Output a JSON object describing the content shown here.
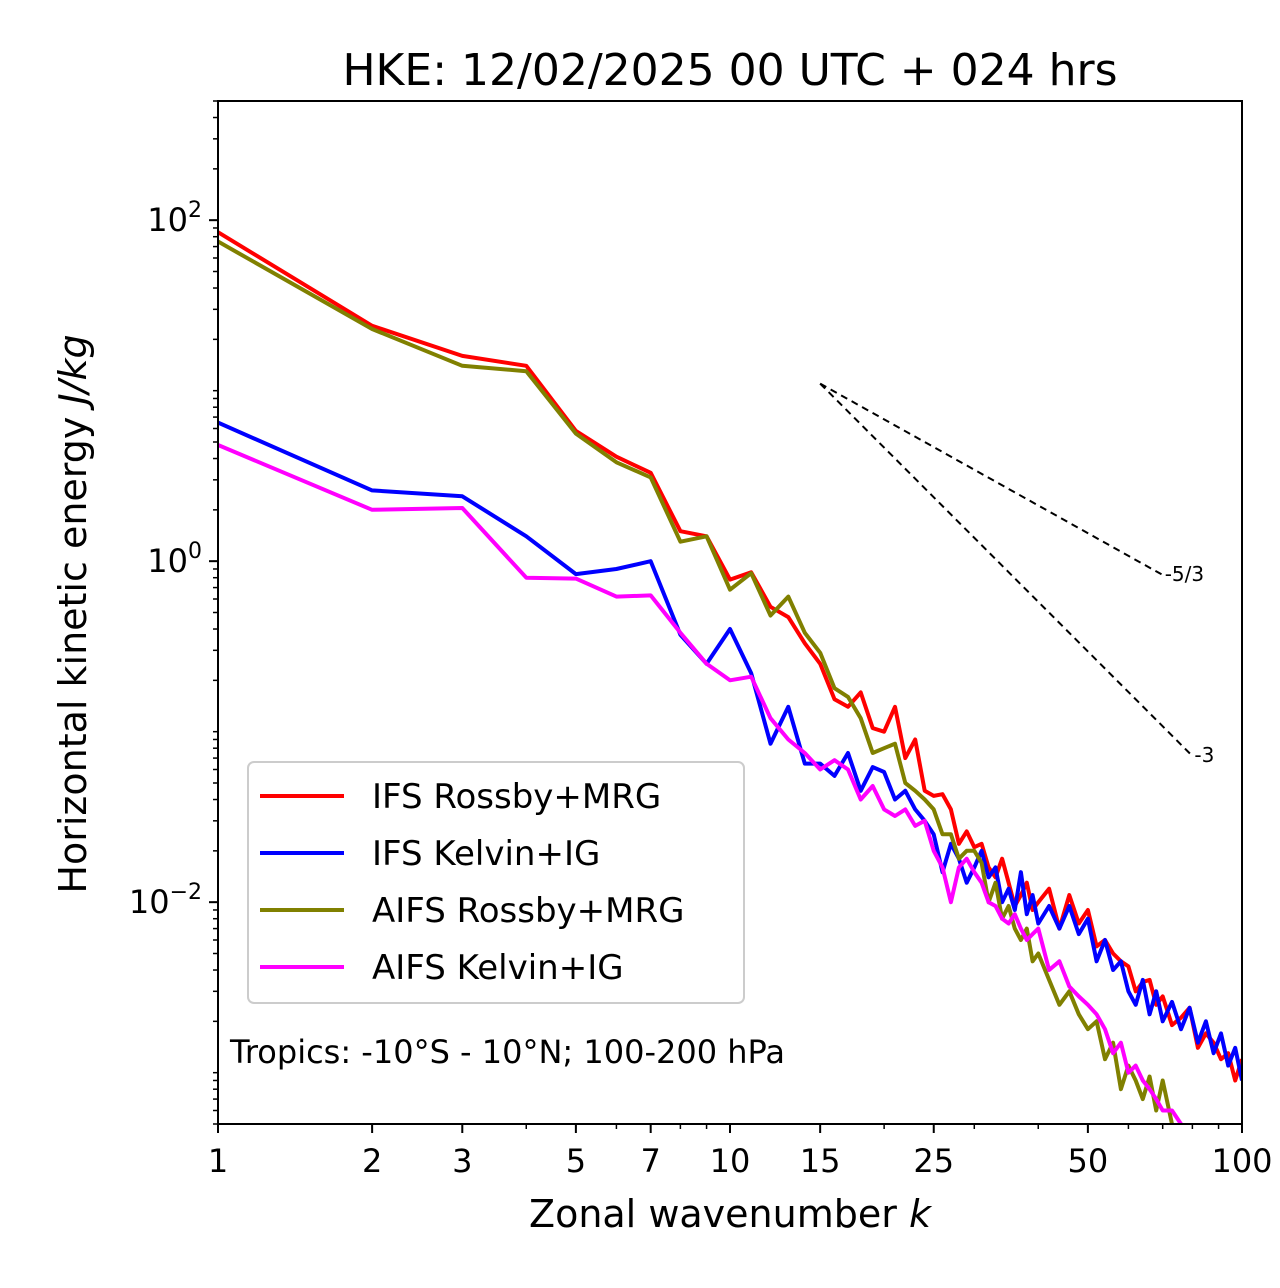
{
  "chart_data": {
    "type": "line",
    "title": "HKE: 12/02/2025 00 UTC + 024 hrs",
    "xlabel": "Zonal wavenumber",
    "xlabel_var": "k",
    "ylabel": "Horizontal kinetic energy",
    "ylabel_unit": "J/kg",
    "x_scale": "log",
    "y_scale": "log",
    "xlim": [
      1,
      100
    ],
    "ylim": [
      0.0005,
      500
    ],
    "x_ticks": [
      1,
      2,
      3,
      5,
      7,
      10,
      15,
      25,
      50,
      100
    ],
    "x_tick_labels": [
      "1",
      "2",
      "3",
      "5",
      "7",
      "10",
      "15",
      "25",
      "50",
      "100"
    ],
    "y_ticks": [
      0.01,
      1,
      100
    ],
    "y_tick_labels": [
      {
        "base": "10",
        "exp": "−2"
      },
      {
        "base": "10",
        "exp": "0"
      },
      {
        "base": "10",
        "exp": "2"
      }
    ],
    "grid": false,
    "legend_position": "lower-left",
    "annotation": "Tropics: -10°S - 10°N; 100-200 hPa",
    "reference_lines": [
      {
        "label": "-5/3",
        "slope": -1.6667,
        "x": [
          15,
          70
        ],
        "y": [
          11,
          0.83
        ]
      },
      {
        "label": "-3",
        "slope": -3,
        "x": [
          15,
          80
        ],
        "y": [
          11,
          0.072
        ]
      }
    ],
    "series": [
      {
        "name": "IFS Rossby+MRG",
        "color": "#ff0000",
        "x": [
          1,
          2,
          3,
          4,
          5,
          6,
          7,
          8,
          9,
          10,
          11,
          12,
          13,
          14,
          15,
          16,
          17,
          18,
          19,
          20,
          21,
          22,
          23,
          24,
          25,
          26,
          27,
          28,
          29,
          30,
          31,
          32,
          33,
          34,
          35,
          36,
          37,
          38,
          39,
          40,
          42,
          44,
          46,
          48,
          50,
          52,
          54,
          56,
          58,
          60,
          62,
          64,
          66,
          68,
          70,
          73,
          76,
          79,
          82,
          85,
          88,
          91,
          94,
          97,
          100
        ],
        "y": [
          85,
          24,
          16,
          14,
          5.8,
          4.1,
          3.3,
          1.5,
          1.4,
          0.78,
          0.86,
          0.54,
          0.47,
          0.33,
          0.25,
          0.155,
          0.14,
          0.17,
          0.105,
          0.1,
          0.14,
          0.07,
          0.09,
          0.045,
          0.042,
          0.043,
          0.035,
          0.022,
          0.026,
          0.021,
          0.022,
          0.016,
          0.014,
          0.018,
          0.013,
          0.0095,
          0.011,
          0.013,
          0.009,
          0.01,
          0.012,
          0.007,
          0.011,
          0.0075,
          0.009,
          0.0055,
          0.006,
          0.005,
          0.0045,
          0.0042,
          0.003,
          0.0034,
          0.0035,
          0.0025,
          0.0028,
          0.0019,
          0.0021,
          0.0024,
          0.0014,
          0.0017,
          0.0015,
          0.0012,
          0.0013,
          0.0009,
          0.0012
        ]
      },
      {
        "name": "IFS Kelvin+IG",
        "color": "#0000ff",
        "x": [
          1,
          2,
          3,
          4,
          5,
          6,
          7,
          8,
          9,
          10,
          11,
          12,
          13,
          14,
          15,
          16,
          17,
          18,
          19,
          20,
          21,
          22,
          23,
          24,
          25,
          26,
          27,
          28,
          29,
          30,
          31,
          32,
          33,
          34,
          35,
          36,
          37,
          38,
          39,
          40,
          42,
          44,
          46,
          48,
          50,
          52,
          54,
          56,
          58,
          60,
          62,
          64,
          66,
          68,
          70,
          73,
          76,
          79,
          82,
          85,
          88,
          91,
          94,
          97,
          100
        ],
        "y": [
          6.5,
          2.6,
          2.4,
          1.4,
          0.84,
          0.9,
          1.0,
          0.37,
          0.25,
          0.4,
          0.22,
          0.085,
          0.14,
          0.065,
          0.065,
          0.055,
          0.075,
          0.045,
          0.062,
          0.058,
          0.04,
          0.045,
          0.035,
          0.03,
          0.025,
          0.015,
          0.022,
          0.018,
          0.013,
          0.016,
          0.02,
          0.014,
          0.016,
          0.01,
          0.012,
          0.009,
          0.015,
          0.0085,
          0.011,
          0.0075,
          0.0095,
          0.007,
          0.0095,
          0.0065,
          0.008,
          0.0045,
          0.006,
          0.004,
          0.0045,
          0.003,
          0.0025,
          0.0035,
          0.0022,
          0.003,
          0.002,
          0.0026,
          0.0018,
          0.0024,
          0.0015,
          0.002,
          0.0013,
          0.0017,
          0.0011,
          0.0014,
          0.0009
        ]
      },
      {
        "name": "AIFS Rossby+MRG",
        "color": "#808000",
        "x": [
          1,
          2,
          3,
          4,
          5,
          6,
          7,
          8,
          9,
          10,
          11,
          12,
          13,
          14,
          15,
          16,
          17,
          18,
          19,
          20,
          21,
          22,
          23,
          24,
          25,
          26,
          27,
          28,
          29,
          30,
          31,
          32,
          33,
          34,
          35,
          36,
          37,
          38,
          39,
          40,
          42,
          44,
          46,
          48,
          50,
          52,
          54,
          56,
          58,
          60,
          62,
          64,
          66,
          68,
          70,
          73,
          76
        ],
        "y": [
          75,
          23,
          14,
          13,
          5.6,
          3.8,
          3.1,
          1.3,
          1.4,
          0.68,
          0.85,
          0.48,
          0.62,
          0.38,
          0.29,
          0.18,
          0.16,
          0.12,
          0.075,
          0.08,
          0.085,
          0.05,
          0.045,
          0.04,
          0.035,
          0.025,
          0.025,
          0.018,
          0.02,
          0.02,
          0.017,
          0.01,
          0.013,
          0.008,
          0.0095,
          0.007,
          0.006,
          0.007,
          0.0045,
          0.005,
          0.0035,
          0.0025,
          0.003,
          0.0022,
          0.0018,
          0.002,
          0.0012,
          0.0015,
          0.0008,
          0.0011,
          0.0009,
          0.0007,
          0.00095,
          0.0006,
          0.0009,
          0.0005,
          0.0004
        ]
      },
      {
        "name": "AIFS Kelvin+IG",
        "color": "#ff00ff",
        "x": [
          1,
          2,
          3,
          4,
          5,
          6,
          7,
          8,
          9,
          10,
          11,
          12,
          13,
          14,
          15,
          16,
          17,
          18,
          19,
          20,
          21,
          22,
          23,
          24,
          25,
          26,
          27,
          28,
          29,
          30,
          31,
          32,
          33,
          34,
          35,
          36,
          37,
          38,
          39,
          40,
          42,
          44,
          46,
          48,
          50,
          52,
          54,
          56,
          58,
          60,
          62,
          64,
          66,
          68,
          70,
          73,
          76
        ],
        "y": [
          4.8,
          2.0,
          2.05,
          0.8,
          0.79,
          0.62,
          0.63,
          0.38,
          0.25,
          0.2,
          0.21,
          0.12,
          0.09,
          0.075,
          0.06,
          0.068,
          0.06,
          0.04,
          0.048,
          0.035,
          0.032,
          0.035,
          0.028,
          0.03,
          0.02,
          0.016,
          0.01,
          0.016,
          0.018,
          0.015,
          0.013,
          0.01,
          0.0095,
          0.008,
          0.0075,
          0.0085,
          0.007,
          0.006,
          0.0065,
          0.007,
          0.004,
          0.0045,
          0.0032,
          0.0028,
          0.0025,
          0.0022,
          0.0018,
          0.0013,
          0.0015,
          0.001,
          0.0011,
          0.0009,
          0.0008,
          0.0007,
          0.0006,
          0.0006,
          0.0005
        ]
      }
    ]
  }
}
